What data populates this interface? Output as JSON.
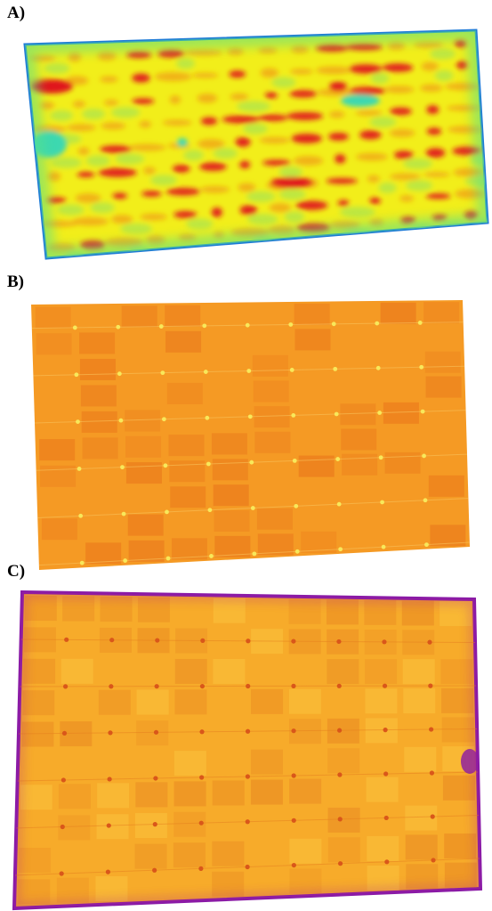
{
  "figure": {
    "panels": [
      {
        "label": "A)",
        "kind": "thermal image (jet colormap)",
        "dot_rows": 9,
        "dot_cols": 14
      },
      {
        "label": "B)",
        "kind": "thermal image (orange colormap)",
        "dot_rows": 5,
        "dot_cols": 9
      },
      {
        "label": "C)",
        "kind": "thermal image (inferno-like colormap)",
        "dot_rows": 6,
        "dot_cols": 9
      }
    ]
  },
  "colors": {
    "a_bg": "#f2ee1a",
    "a_hot": "#e0161a",
    "a_cool": "#3ed8b0",
    "a_edge": "#1e7bd6",
    "b_base": "#f59a24",
    "b_dark": "#e9741a",
    "b_dot": "#f8e85a",
    "c_base": "#f7ab2a",
    "c_dark": "#e57f1f",
    "c_edge": "#8a1aa6"
  }
}
